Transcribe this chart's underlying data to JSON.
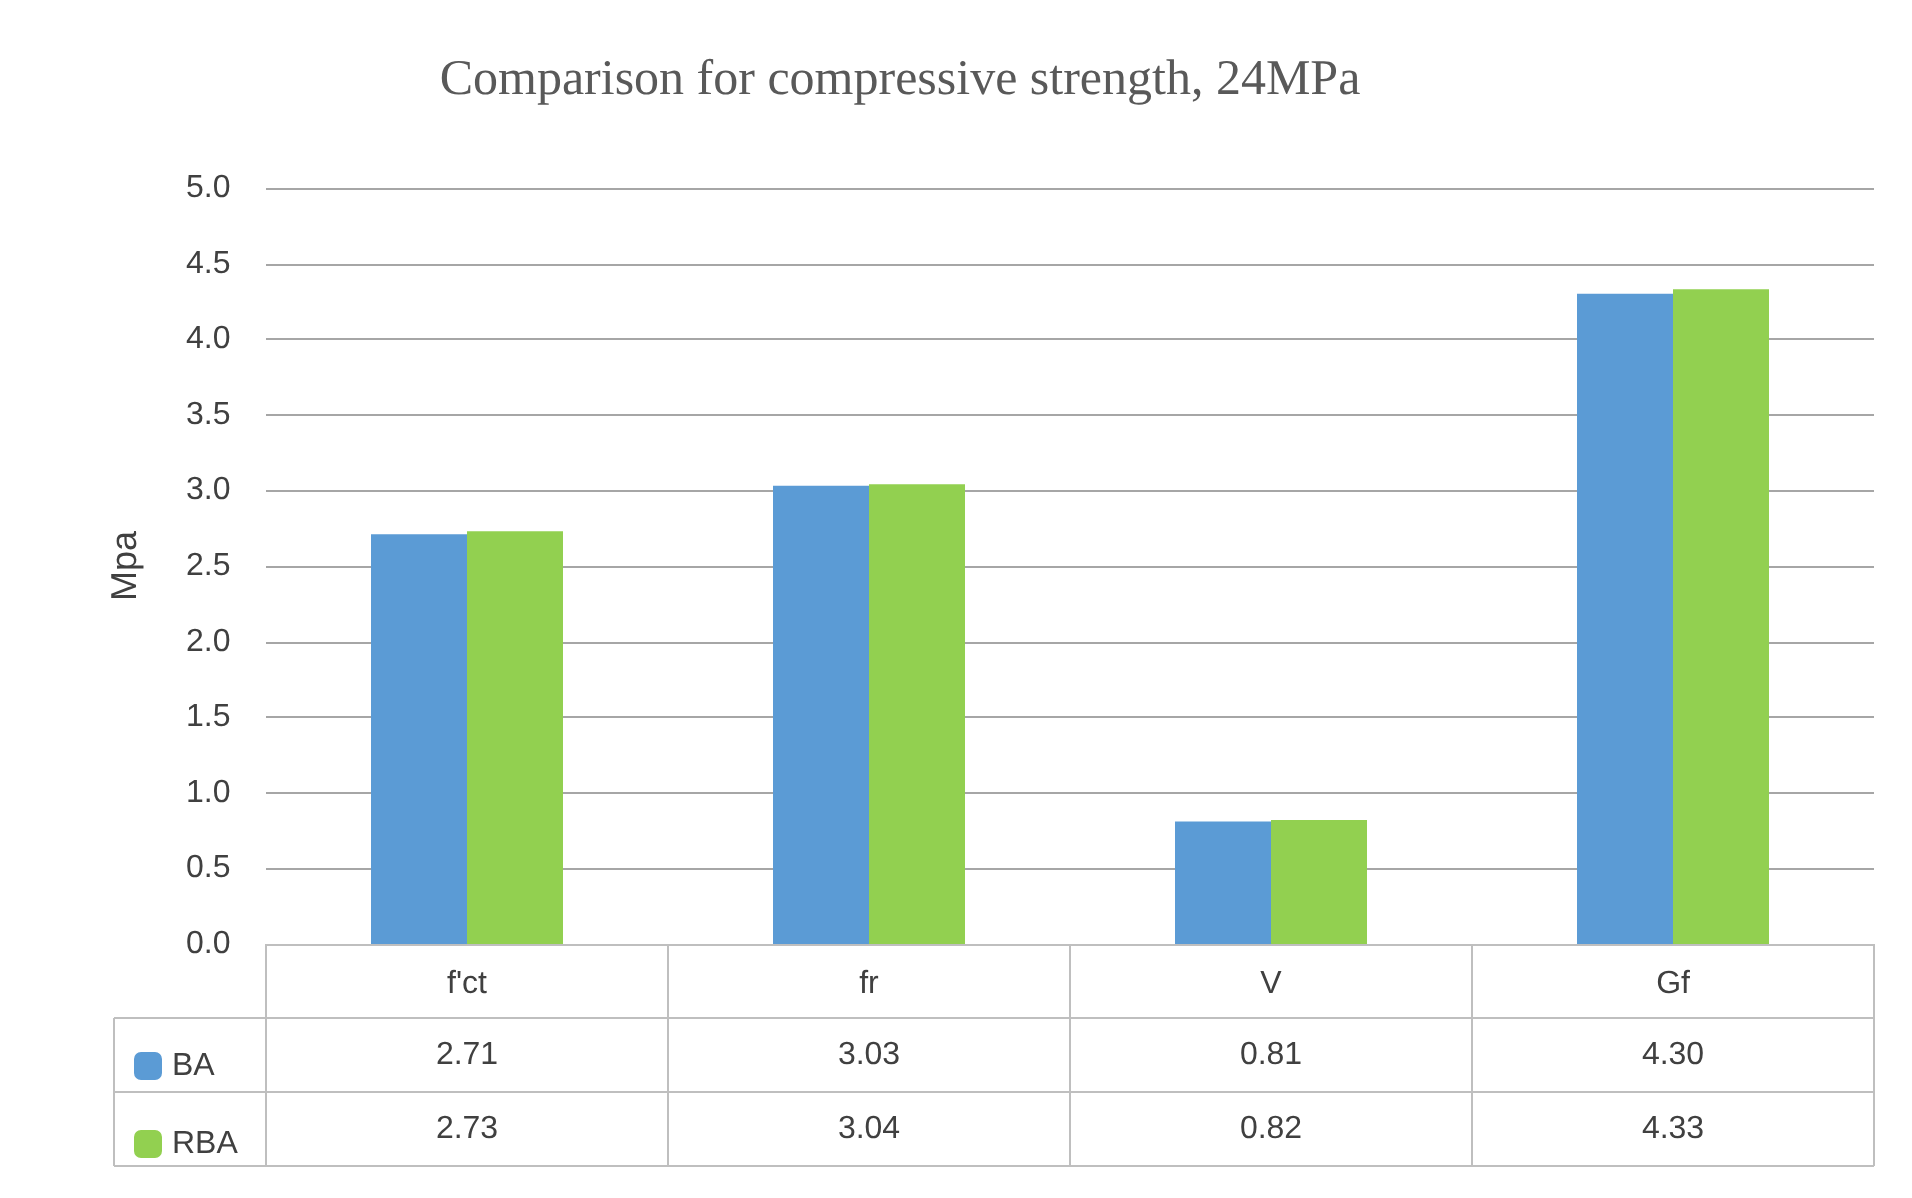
{
  "chart_data": {
    "type": "bar",
    "title": "Comparison for compressive strength, 24MPa",
    "ylabel": "Mpa",
    "categories": [
      "f'ct",
      "fr",
      "V",
      "Gf"
    ],
    "series": [
      {
        "name": "BA",
        "color": "#5b9bd5",
        "values": [
          2.71,
          3.03,
          0.81,
          4.3
        ],
        "value_labels": [
          "2.71",
          "3.03",
          "0.81",
          "4.30"
        ]
      },
      {
        "name": "RBA",
        "color": "#92d050",
        "values": [
          2.73,
          3.04,
          0.82,
          4.33
        ],
        "value_labels": [
          "2.73",
          "3.04",
          "0.82",
          "4.33"
        ]
      }
    ],
    "ylim": [
      0,
      5
    ],
    "yticks": [
      "0.0",
      "0.5",
      "1.0",
      "1.5",
      "2.0",
      "2.5",
      "3.0",
      "3.5",
      "4.0",
      "4.5",
      "5.0"
    ],
    "grid": "y",
    "legend": "bottom left"
  }
}
